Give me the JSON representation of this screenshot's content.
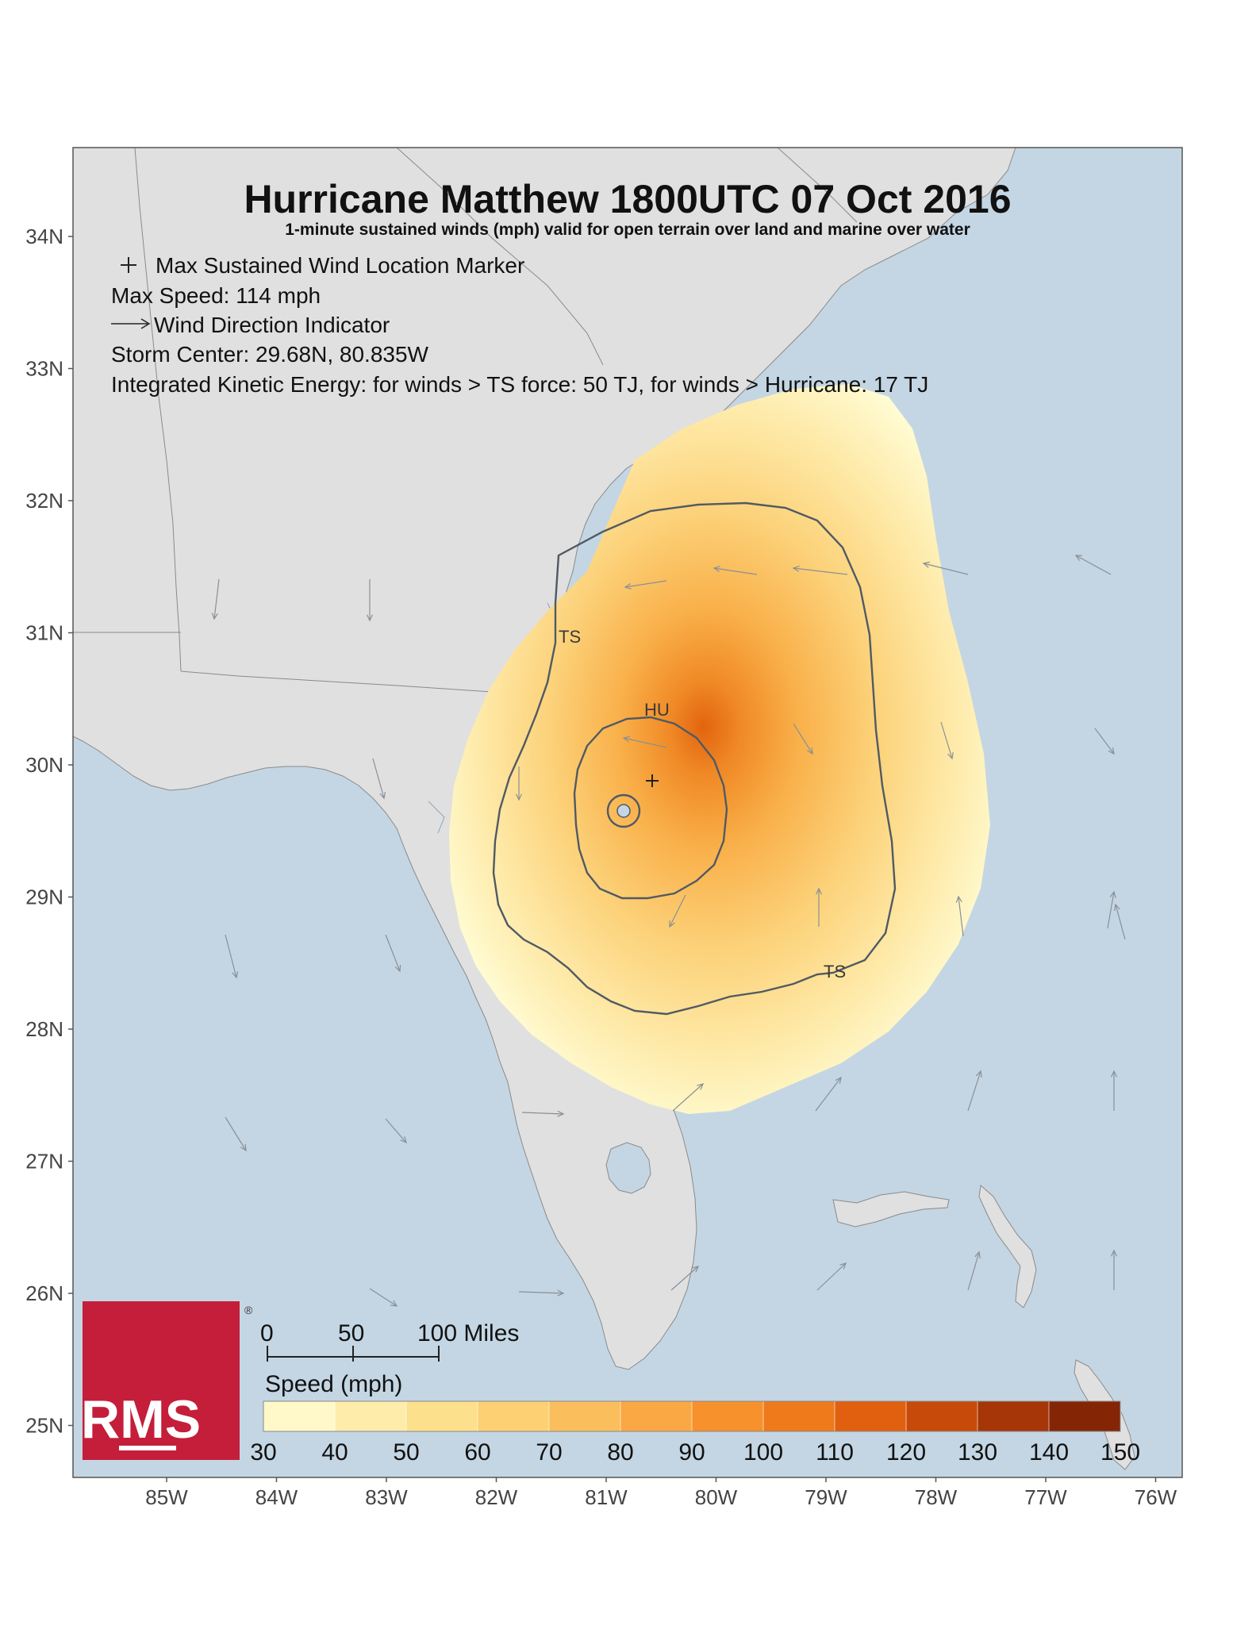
{
  "title": "Hurricane Matthew 1800UTC 07 Oct 2016",
  "subtitle": "1-minute sustained winds (mph) valid for open terrain over land and marine over water",
  "legend_lines": [
    "Max Sustained Wind Location Marker",
    "Max Speed: 114 mph",
    "Wind Direction Indicator",
    "Storm Center: 29.68N, 80.835W",
    "Integrated Kinetic Energy: for winds > TS force: 50 TJ, for winds > Hurricane: 17 TJ"
  ],
  "max_marker_symbol": "+",
  "lat_labels": [
    "34N",
    "33N",
    "32N",
    "31N",
    "30N",
    "29N",
    "28N",
    "27N",
    "26N",
    "25N"
  ],
  "lon_labels": [
    "85W",
    "84W",
    "83W",
    "82W",
    "81W",
    "80W",
    "79W",
    "78W",
    "77W",
    "76W"
  ],
  "contour_labels": {
    "ts_1": "TS",
    "ts_2": "TS",
    "hu": "HU"
  },
  "scale_bar": {
    "ticks": [
      "0",
      "50",
      "100 Miles"
    ]
  },
  "colorbar": {
    "title": "Speed (mph)",
    "ticks": [
      "30",
      "40",
      "50",
      "60",
      "70",
      "80",
      "90",
      "100",
      "110",
      "120",
      "130",
      "140",
      "150"
    ],
    "colors": [
      "#fff8c8",
      "#feecaa",
      "#fde08c",
      "#fcd073",
      "#fbbe5d",
      "#f9a843",
      "#f6912c",
      "#ee7a1c",
      "#e06010",
      "#c84a0a",
      "#a63608",
      "#842606"
    ]
  },
  "logo": {
    "text": "RMS",
    "registered": "®",
    "color": "#c41e3a"
  },
  "colors": {
    "ocean": "#c4d6e3",
    "land": "#e0e0e0",
    "contour": "#505a64"
  }
}
